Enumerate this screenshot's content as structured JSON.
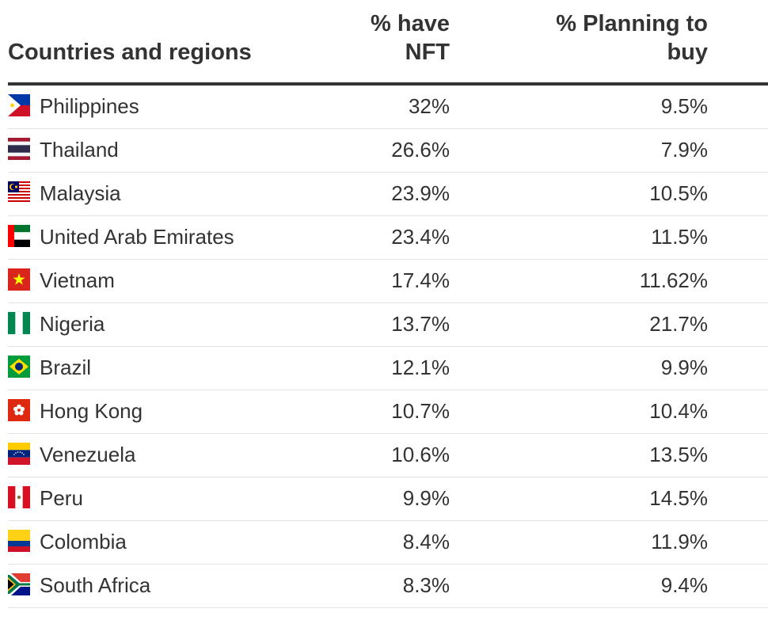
{
  "headers": {
    "country": "Countries and regions",
    "have_nft": "% have NFT",
    "planning": "% Planning to buy"
  },
  "chart_data": {
    "type": "table",
    "columns": [
      "Countries and regions",
      "% have NFT",
      "% Planning to buy"
    ],
    "rows": [
      {
        "country": "Philippines",
        "flag": "philippines-flag-icon",
        "have_nft": "32%",
        "planning": "9.5%"
      },
      {
        "country": "Thailand",
        "flag": "thailand-flag-icon",
        "have_nft": "26.6%",
        "planning": "7.9%"
      },
      {
        "country": "Malaysia",
        "flag": "malaysia-flag-icon",
        "have_nft": "23.9%",
        "planning": "10.5%"
      },
      {
        "country": "United Arab Emirates",
        "flag": "uae-flag-icon",
        "have_nft": "23.4%",
        "planning": "11.5%"
      },
      {
        "country": "Vietnam",
        "flag": "vietnam-flag-icon",
        "have_nft": "17.4%",
        "planning": "11.62%"
      },
      {
        "country": "Nigeria",
        "flag": "nigeria-flag-icon",
        "have_nft": "13.7%",
        "planning": "21.7%"
      },
      {
        "country": "Brazil",
        "flag": "brazil-flag-icon",
        "have_nft": "12.1%",
        "planning": "9.9%"
      },
      {
        "country": "Hong Kong",
        "flag": "hong-kong-flag-icon",
        "have_nft": "10.7%",
        "planning": "10.4%"
      },
      {
        "country": "Venezuela",
        "flag": "venezuela-flag-icon",
        "have_nft": "10.6%",
        "planning": "13.5%"
      },
      {
        "country": "Peru",
        "flag": "peru-flag-icon",
        "have_nft": "9.9%",
        "planning": "14.5%"
      },
      {
        "country": "Colombia",
        "flag": "colombia-flag-icon",
        "have_nft": "8.4%",
        "planning": "11.9%"
      },
      {
        "country": "South Africa",
        "flag": "south-africa-flag-icon",
        "have_nft": "8.3%",
        "planning": "9.4%"
      }
    ]
  },
  "colors": {
    "text": "#333333",
    "header_rule": "#333333",
    "row_rule": "#e3e3e3"
  }
}
